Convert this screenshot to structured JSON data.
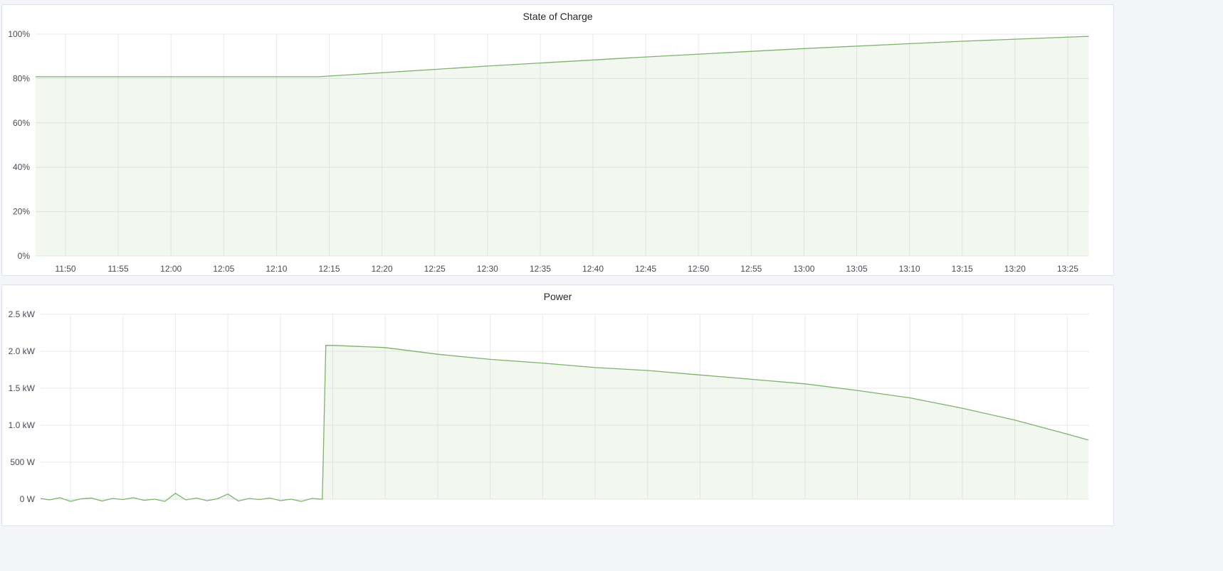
{
  "chart_data": [
    {
      "type": "area",
      "title": "State of Charge",
      "y_unit": "%",
      "ylim": [
        0,
        100
      ],
      "yticks": [
        "0%",
        "20%",
        "40%",
        "60%",
        "80%",
        "100%"
      ],
      "xlim": [
        "11:47",
        "13:27"
      ],
      "xticks": [
        "11:50",
        "11:55",
        "12:00",
        "12:05",
        "12:10",
        "12:15",
        "12:20",
        "12:25",
        "12:30",
        "12:35",
        "12:40",
        "12:45",
        "12:50",
        "12:55",
        "13:00",
        "13:05",
        "13:10",
        "13:15",
        "13:20",
        "13:25"
      ],
      "grid": true,
      "series": [
        {
          "x": [
            "11:47",
            "12:14",
            "12:30",
            "12:45",
            "13:00",
            "13:15",
            "13:27"
          ],
          "values": [
            80.8,
            80.8,
            85.6,
            89.7,
            93.5,
            96.8,
            99.0
          ]
        }
      ],
      "color": "#7eb26d"
    },
    {
      "type": "area",
      "title": "Power",
      "y_unit": "W",
      "ylim": [
        0,
        2500
      ],
      "yticks": [
        "0 W",
        "500 W",
        "1.0 kW",
        "1.5 kW",
        "2.0 kW",
        "2.5 kW"
      ],
      "xlim": [
        "11:47",
        "13:27"
      ],
      "grid": true,
      "series": [
        {
          "x": [
            "11:47",
            "11:48",
            "11:49",
            "11:50",
            "11:51",
            "11:52",
            "11:53",
            "11:54",
            "11:55",
            "11:56",
            "11:57",
            "11:58",
            "11:59",
            "12:00",
            "12:01",
            "12:02",
            "12:03",
            "12:04",
            "12:05",
            "12:06",
            "12:07",
            "12:08",
            "12:09",
            "12:10",
            "12:11",
            "12:12",
            "12:13",
            "12:14",
            "12:14:20",
            "12:15",
            "12:20",
            "12:25",
            "12:30",
            "12:35",
            "12:40",
            "12:45",
            "12:50",
            "12:55",
            "13:00",
            "13:05",
            "13:10",
            "13:15",
            "13:20",
            "13:25",
            "13:27"
          ],
          "values": [
            10,
            -10,
            20,
            -30,
            5,
            15,
            -25,
            10,
            -5,
            20,
            -15,
            0,
            -30,
            80,
            -10,
            15,
            -20,
            5,
            70,
            -25,
            10,
            -5,
            15,
            -20,
            0,
            -30,
            10,
            0,
            2080,
            2080,
            2050,
            1960,
            1890,
            1840,
            1780,
            1740,
            1680,
            1620,
            1560,
            1470,
            1370,
            1230,
            1070,
            880,
            800
          ]
        }
      ],
      "color": "#7eb26d"
    }
  ]
}
